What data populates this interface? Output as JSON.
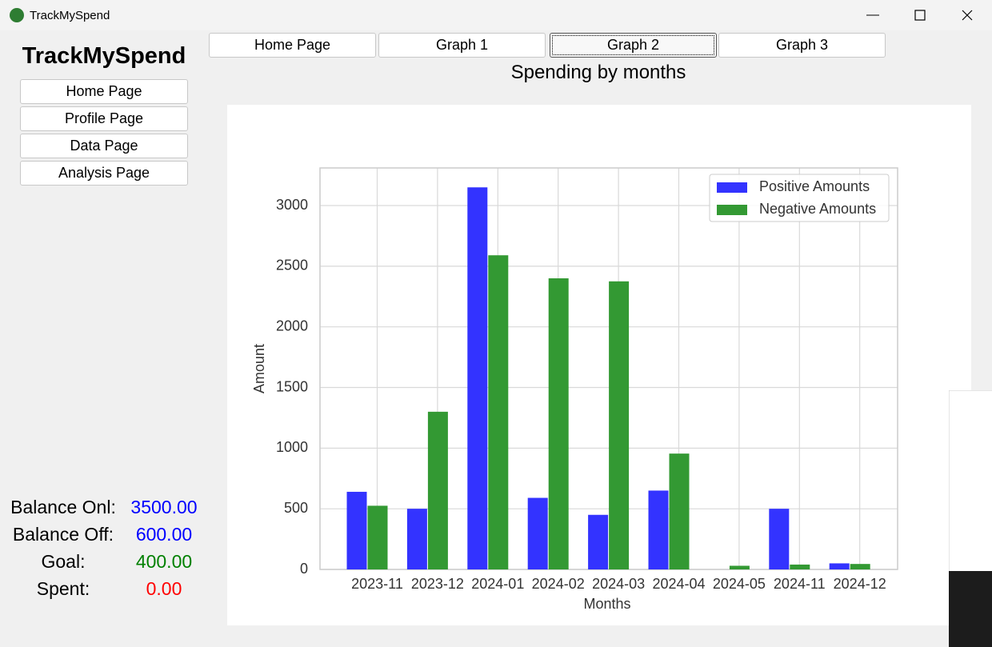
{
  "window": {
    "title": "TrackMySpend"
  },
  "sidebar": {
    "app_name": "TrackMySpend",
    "buttons": [
      "Home Page",
      "Profile Page",
      "Data Page",
      "Analysis Page"
    ]
  },
  "tabs": [
    "Home Page",
    "Graph 1",
    "Graph 2",
    "Graph 3"
  ],
  "balances": [
    {
      "label": "Balance Onl:",
      "value": "3500.00",
      "color": "#0000ff"
    },
    {
      "label": "Balance Off:",
      "value": "600.00",
      "color": "#0000ff"
    },
    {
      "label": "Goal:",
      "value": "400.00",
      "color": "#008000"
    },
    {
      "label": "Spent:",
      "value": "0.00",
      "color": "#ff0000"
    }
  ],
  "chart_data": {
    "type": "bar",
    "title": "Spending by months",
    "x_label": "Months",
    "y_label": "Amount",
    "categories": [
      "2023-11",
      "2023-12",
      "2024-01",
      "2024-02",
      "2024-03",
      "2024-04",
      "2024-05",
      "2024-11",
      "2024-12"
    ],
    "series": [
      {
        "name": "Positive Amounts",
        "color": "#3333ff",
        "values": [
          640,
          500,
          3150,
          590,
          450,
          650,
          0,
          500,
          50
        ]
      },
      {
        "name": "Negative Amounts",
        "color": "#339933",
        "values": [
          525,
          1300,
          2590,
          2400,
          2375,
          955,
          30,
          40,
          45
        ]
      }
    ],
    "ylim": [
      0,
      3310
    ],
    "yticks": [
      0,
      500,
      1000,
      1500,
      2000,
      2500,
      3000
    ],
    "grid": true,
    "legend": "upper right"
  }
}
